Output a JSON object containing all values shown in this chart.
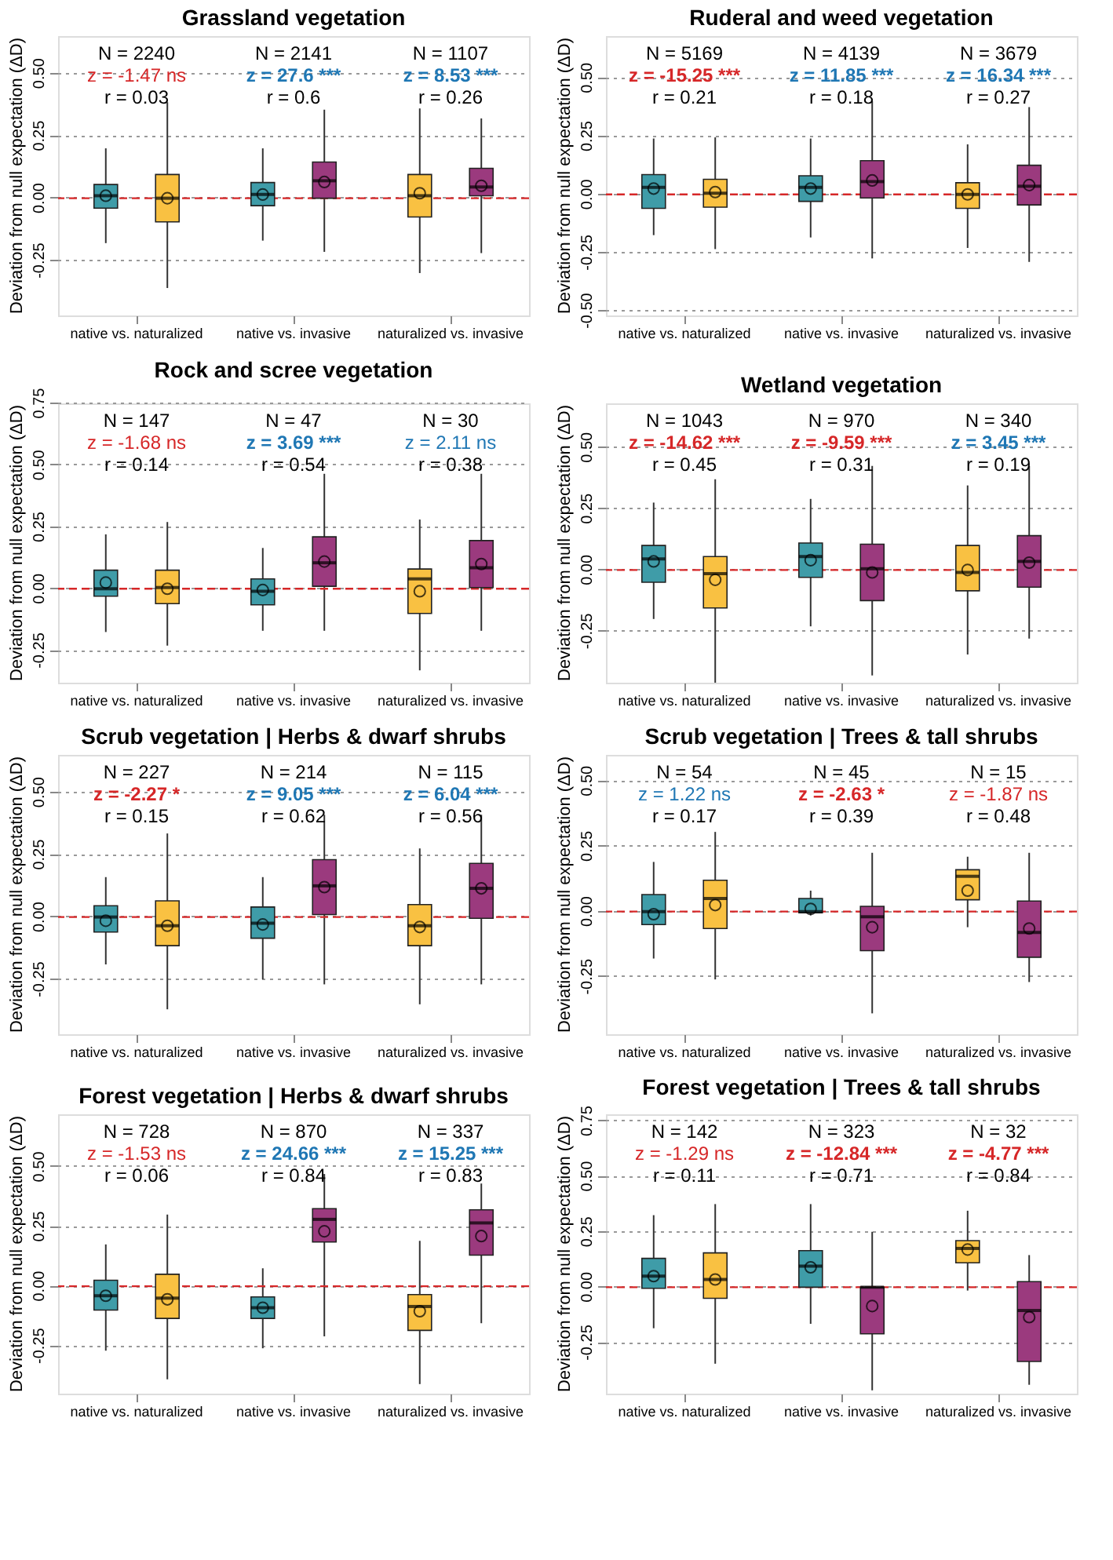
{
  "chart_data": [
    {
      "type": "box",
      "title": "Grassland vegetation",
      "ylabel": "Deviation from null expectation (ΔD)",
      "categories": [
        "native vs. naturalized",
        "native vs. invasive",
        "naturalized vs. invasive"
      ],
      "ylim": [
        -0.47,
        0.65
      ],
      "yticks": [
        -0.25,
        {
          "value": 0,
          "label": "0.00"
        },
        0.25,
        {
          "value": 0.5,
          "label": "0.50"
        }
      ],
      "grid": "y",
      "ref_lines": [
        {
          "axis": "y",
          "value": 0,
          "color": "#d62728",
          "line_style": "dashed"
        }
      ],
      "annotations": [
        "N = 2240",
        "z = -1.47 ns",
        "r = 0.03",
        "N = 2141",
        "z = 27.6 ***",
        "r = 0.6",
        "N = 1107",
        "z = 8.53 ***",
        "r = 0.26"
      ],
      "series": [
        {
          "colors": [
            "#3f9ca8",
            "#3f9ca8",
            "#f9c142"
          ],
          "boxes": [
            {
              "low": -0.18,
              "q1": -0.04,
              "median": 0.01,
              "q3": 0.055,
              "high": 0.2,
              "mean": 0.01
            },
            {
              "low": -0.17,
              "q1": -0.03,
              "median": 0.015,
              "q3": 0.063,
              "high": 0.2,
              "mean": 0.015
            },
            {
              "low": -0.3,
              "q1": -0.075,
              "median": 0.01,
              "q3": 0.095,
              "high": 0.36,
              "mean": 0.02
            }
          ]
        },
        {
          "colors": [
            "#f9c142",
            "#9b3a7e",
            "#9b3a7e"
          ],
          "boxes": [
            {
              "low": -0.36,
              "q1": -0.095,
              "median": 0.0,
              "q3": 0.095,
              "high": 0.385,
              "mean": 0.0
            },
            {
              "low": -0.215,
              "q1": 0.0,
              "median": 0.07,
              "q3": 0.145,
              "high": 0.355,
              "mean": 0.065
            },
            {
              "low": -0.22,
              "q1": 0.01,
              "median": 0.045,
              "q3": 0.12,
              "high": 0.32,
              "mean": 0.05
            }
          ]
        }
      ]
    },
    {
      "type": "box",
      "title": "Ruderal and weed vegetation",
      "ylabel": "Deviation from null expectation (ΔD)",
      "categories": [
        "native vs. naturalized",
        "native vs. invasive",
        "naturalized vs. invasive"
      ],
      "ylim": [
        -0.52,
        0.68
      ],
      "yticks": [
        {
          "value": -0.5,
          "label": "-0.50"
        },
        -0.25,
        {
          "value": 0,
          "label": "0.00"
        },
        0.25,
        {
          "value": 0.5,
          "label": "0.50"
        }
      ],
      "grid": "y",
      "ref_lines": [
        {
          "axis": "y",
          "value": 0,
          "color": "#d62728",
          "line_style": "dashed"
        }
      ],
      "annotations": [
        "N = 5169",
        "z = -15.25 ***",
        "r = 0.21",
        "N = 4139",
        "z = 11.85 ***",
        "r = 0.18",
        "N = 3679",
        "z = 16.34 ***",
        "r = 0.27"
      ],
      "series": [
        {
          "colors": [
            "#3f9ca8",
            "#3f9ca8",
            "#f9c142"
          ],
          "boxes": [
            {
              "low": -0.175,
              "q1": -0.06,
              "median": 0.03,
              "q3": 0.085,
              "high": 0.24,
              "mean": 0.025
            },
            {
              "low": -0.185,
              "q1": -0.03,
              "median": 0.03,
              "q3": 0.08,
              "high": 0.24,
              "mean": 0.025
            },
            {
              "low": -0.23,
              "q1": -0.06,
              "median": 0.0,
              "q3": 0.05,
              "high": 0.215,
              "mean": 0.0
            }
          ]
        },
        {
          "colors": [
            "#f9c142",
            "#9b3a7e",
            "#9b3a7e"
          ],
          "boxes": [
            {
              "low": -0.235,
              "q1": -0.055,
              "median": 0.005,
              "q3": 0.065,
              "high": 0.245,
              "mean": 0.01
            },
            {
              "low": -0.275,
              "q1": -0.015,
              "median": 0.055,
              "q3": 0.145,
              "high": 0.4,
              "mean": 0.06
            },
            {
              "low": -0.29,
              "q1": -0.045,
              "median": 0.035,
              "q3": 0.125,
              "high": 0.375,
              "mean": 0.04
            }
          ]
        }
      ]
    },
    {
      "type": "box",
      "title": "Rock and scree vegetation",
      "ylabel": "Deviation from null expectation (ΔD)",
      "categories": [
        "native vs. naturalized",
        "native vs. invasive",
        "naturalized vs. invasive"
      ],
      "ylim": [
        -0.38,
        0.75
      ],
      "yticks": [
        -0.25,
        {
          "value": 0,
          "label": "0.00"
        },
        0.25,
        {
          "value": 0.5,
          "label": "0.50"
        },
        0.75
      ],
      "grid": "y",
      "ref_lines": [
        {
          "axis": "y",
          "value": 0,
          "color": "#d62728",
          "line_style": "dashed"
        }
      ],
      "annotations": [
        "N = 147",
        "z = -1.68 ns",
        "r = 0.14",
        "N = 47",
        "z = 3.69 ***",
        "r = 0.54",
        "N = 30",
        "z = 2.11 ns",
        "r = 0.38"
      ],
      "series": [
        {
          "colors": [
            "#3f9ca8",
            "#3f9ca8",
            "#f9c142"
          ],
          "boxes": [
            {
              "low": -0.175,
              "q1": -0.03,
              "median": 0.0,
              "q3": 0.075,
              "high": 0.22,
              "mean": 0.025
            },
            {
              "low": -0.17,
              "q1": -0.065,
              "median": -0.01,
              "q3": 0.04,
              "high": 0.165,
              "mean": -0.005
            },
            {
              "low": -0.33,
              "q1": -0.1,
              "median": 0.04,
              "q3": 0.08,
              "high": 0.28,
              "mean": -0.01
            }
          ]
        },
        {
          "colors": [
            "#f9c142",
            "#9b3a7e",
            "#9b3a7e"
          ],
          "boxes": [
            {
              "low": -0.23,
              "q1": -0.06,
              "median": 0.005,
              "q3": 0.075,
              "high": 0.27,
              "mean": 0.0
            },
            {
              "low": -0.17,
              "q1": 0.01,
              "median": 0.105,
              "q3": 0.21,
              "high": 0.465,
              "mean": 0.11
            },
            {
              "low": -0.17,
              "q1": 0.005,
              "median": 0.085,
              "q3": 0.195,
              "high": 0.465,
              "mean": 0.1
            }
          ]
        }
      ]
    },
    {
      "type": "box",
      "title": "Wetland vegetation",
      "ylabel": "Deviation from null expectation (ΔD)",
      "categories": [
        "native vs. naturalized",
        "native vs. invasive",
        "naturalized vs. invasive"
      ],
      "ylim": [
        -0.46,
        0.68
      ],
      "yticks": [
        -0.25,
        {
          "value": 0,
          "label": "0.00"
        },
        0.25,
        {
          "value": 0.5,
          "label": "0.50"
        }
      ],
      "grid": "y",
      "ref_lines": [
        {
          "axis": "y",
          "value": 0,
          "color": "#d62728",
          "line_style": "dashed"
        }
      ],
      "annotations": [
        "N = 1043",
        "z = -14.62 ***",
        "r = 0.45",
        "N = 970",
        "z = -9.59 ***",
        "r = 0.31",
        "N = 340",
        "z = 3.45 ***",
        "r = 0.19"
      ],
      "series": [
        {
          "colors": [
            "#3f9ca8",
            "#3f9ca8",
            "#f9c142"
          ],
          "boxes": [
            {
              "low": -0.2,
              "q1": -0.05,
              "median": 0.045,
              "q3": 0.1,
              "high": 0.275,
              "mean": 0.035
            },
            {
              "low": -0.23,
              "q1": -0.03,
              "median": 0.055,
              "q3": 0.11,
              "high": 0.29,
              "mean": 0.04
            },
            {
              "low": -0.345,
              "q1": -0.085,
              "median": -0.01,
              "q3": 0.1,
              "high": 0.345,
              "mean": 0.0
            }
          ]
        },
        {
          "colors": [
            "#f9c142",
            "#9b3a7e",
            "#9b3a7e"
          ],
          "boxes": [
            {
              "low": -0.46,
              "q1": -0.155,
              "median": -0.015,
              "q3": 0.055,
              "high": 0.37,
              "mean": -0.04
            },
            {
              "low": -0.43,
              "q1": -0.125,
              "median": 0.005,
              "q3": 0.105,
              "high": 0.425,
              "mean": -0.01
            },
            {
              "low": -0.28,
              "q1": -0.07,
              "median": 0.035,
              "q3": 0.14,
              "high": 0.425,
              "mean": 0.03
            }
          ]
        }
      ]
    },
    {
      "type": "box",
      "title": "Scrub vegetation | Herbs & dwarf shrubs",
      "ylabel": "Deviation from null expectation (ΔD)",
      "categories": [
        "native vs. naturalized",
        "native vs. invasive",
        "naturalized vs. invasive"
      ],
      "ylim": [
        -0.47,
        0.65
      ],
      "yticks": [
        -0.25,
        {
          "value": 0,
          "label": "0.00"
        },
        0.25,
        {
          "value": 0.5,
          "label": "0.50"
        }
      ],
      "grid": "y",
      "ref_lines": [
        {
          "axis": "y",
          "value": 0,
          "color": "#d62728",
          "line_style": "dashed"
        }
      ],
      "annotations": [
        "N = 227",
        "z = -2.27 *",
        "r = 0.15",
        "N = 214",
        "z = 9.05 ***",
        "r = 0.62",
        "N = 115",
        "z = 6.04 ***",
        "r = 0.56"
      ],
      "series": [
        {
          "colors": [
            "#3f9ca8",
            "#3f9ca8",
            "#f9c142"
          ],
          "boxes": [
            {
              "low": -0.19,
              "q1": -0.06,
              "median": 0.0,
              "q3": 0.045,
              "high": 0.16,
              "mean": -0.015
            },
            {
              "low": -0.25,
              "q1": -0.085,
              "median": -0.025,
              "q3": 0.04,
              "high": 0.16,
              "mean": -0.03
            },
            {
              "low": -0.35,
              "q1": -0.115,
              "median": -0.035,
              "q3": 0.05,
              "high": 0.275,
              "mean": -0.04
            }
          ]
        },
        {
          "colors": [
            "#f9c142",
            "#9b3a7e",
            "#9b3a7e"
          ],
          "boxes": [
            {
              "low": -0.37,
              "q1": -0.115,
              "median": -0.035,
              "q3": 0.065,
              "high": 0.335,
              "mean": -0.035
            },
            {
              "low": -0.27,
              "q1": 0.01,
              "median": 0.125,
              "q3": 0.23,
              "high": 0.41,
              "mean": 0.12
            },
            {
              "low": -0.27,
              "q1": -0.005,
              "median": 0.115,
              "q3": 0.215,
              "high": 0.41,
              "mean": 0.115
            }
          ]
        }
      ]
    },
    {
      "type": "box",
      "title": "Scrub vegetation | Trees & tall shrubs",
      "ylabel": "Deviation from null expectation (ΔD)",
      "categories": [
        "native vs. naturalized",
        "native vs. invasive",
        "naturalized vs. invasive"
      ],
      "ylim": [
        -0.47,
        0.6
      ],
      "yticks": [
        -0.25,
        {
          "value": 0,
          "label": "0.00"
        },
        0.25,
        {
          "value": 0.5,
          "label": "0.50"
        }
      ],
      "grid": "y",
      "ref_lines": [
        {
          "axis": "y",
          "value": 0,
          "color": "#d62728",
          "line_style": "dashed"
        }
      ],
      "annotations": [
        "N = 54",
        "z = 1.22 ns",
        "r = 0.17",
        "N = 45",
        "z = -2.63 *",
        "r = 0.39",
        "N = 15",
        "z = -1.87 ns",
        "r = 0.48"
      ],
      "series": [
        {
          "colors": [
            "#3f9ca8",
            "#3f9ca8",
            "#f9c142"
          ],
          "boxes": [
            {
              "low": -0.18,
              "q1": -0.05,
              "median": 0.0,
              "q3": 0.065,
              "high": 0.19,
              "mean": -0.01
            },
            {
              "low": -0.015,
              "q1": -0.005,
              "median": 0.0,
              "q3": 0.05,
              "high": 0.08,
              "mean": 0.01
            },
            {
              "low": -0.06,
              "q1": 0.045,
              "median": 0.135,
              "q3": 0.16,
              "high": 0.21,
              "mean": 0.08
            }
          ]
        },
        {
          "colors": [
            "#f9c142",
            "#9b3a7e",
            "#9b3a7e"
          ],
          "boxes": [
            {
              "low": -0.26,
              "q1": -0.065,
              "median": 0.05,
              "q3": 0.12,
              "high": 0.305,
              "mean": 0.025
            },
            {
              "low": -0.39,
              "q1": -0.15,
              "median": -0.02,
              "q3": 0.02,
              "high": 0.225,
              "mean": -0.06
            },
            {
              "low": -0.27,
              "q1": -0.175,
              "median": -0.08,
              "q3": 0.04,
              "high": 0.225,
              "mean": -0.065
            }
          ]
        }
      ]
    },
    {
      "type": "box",
      "title": "Forest vegetation | Herbs & dwarf shrubs",
      "ylabel": "Deviation from null expectation (ΔD)",
      "categories": [
        "native vs. naturalized",
        "native vs. invasive",
        "naturalized vs. invasive"
      ],
      "ylim": [
        -0.45,
        0.72
      ],
      "yticks": [
        -0.25,
        {
          "value": 0,
          "label": "0.00"
        },
        0.25,
        {
          "value": 0.5,
          "label": "0.50"
        }
      ],
      "grid": "y",
      "ref_lines": [
        {
          "axis": "y",
          "value": 0,
          "color": "#d62728",
          "line_style": "dashed"
        }
      ],
      "annotations": [
        "N = 728",
        "z = -1.53 ns",
        "r = 0.06",
        "N = 870",
        "z = 24.66 ***",
        "r = 0.84",
        "N = 337",
        "z = 15.25 ***",
        "r = 0.83"
      ],
      "series": [
        {
          "colors": [
            "#3f9ca8",
            "#3f9ca8",
            "#f9c142"
          ],
          "boxes": [
            {
              "low": -0.27,
              "q1": -0.1,
              "median": -0.04,
              "q3": 0.025,
              "high": 0.175,
              "mean": -0.04
            },
            {
              "low": -0.26,
              "q1": -0.135,
              "median": -0.09,
              "q3": -0.045,
              "high": 0.075,
              "mean": -0.09
            },
            {
              "low": -0.41,
              "q1": -0.185,
              "median": -0.085,
              "q3": -0.035,
              "high": 0.19,
              "mean": -0.105
            }
          ]
        },
        {
          "colors": [
            "#f9c142",
            "#9b3a7e",
            "#9b3a7e"
          ],
          "boxes": [
            {
              "low": -0.39,
              "q1": -0.135,
              "median": -0.05,
              "q3": 0.05,
              "high": 0.3,
              "mean": -0.055
            },
            {
              "low": -0.21,
              "q1": 0.185,
              "median": 0.28,
              "q3": 0.325,
              "high": 0.47,
              "mean": 0.23
            },
            {
              "low": -0.155,
              "q1": 0.13,
              "median": 0.265,
              "q3": 0.32,
              "high": 0.43,
              "mean": 0.21
            }
          ]
        }
      ]
    },
    {
      "type": "box",
      "title": "Forest vegetation | Trees & tall shrubs",
      "ylabel": "Deviation from null expectation (ΔD)",
      "categories": [
        "native vs. naturalized",
        "native vs. invasive",
        "naturalized vs. invasive"
      ],
      "ylim": [
        -0.48,
        0.78
      ],
      "yticks": [
        -0.25,
        {
          "value": 0,
          "label": "0.00"
        },
        0.25,
        {
          "value": 0.5,
          "label": "0.50"
        },
        0.75
      ],
      "grid": "y",
      "ref_lines": [
        {
          "axis": "y",
          "value": 0,
          "color": "#d62728",
          "line_style": "dashed"
        }
      ],
      "annotations": [
        "N = 142",
        "z = -1.29 ns",
        "r = 0.11",
        "N = 323",
        "z = -12.84 ***",
        "r = 0.71",
        "N = 32",
        "z = -4.77 ***",
        "r = 0.84"
      ],
      "series": [
        {
          "colors": [
            "#3f9ca8",
            "#3f9ca8",
            "#f9c142"
          ],
          "boxes": [
            {
              "low": -0.185,
              "q1": -0.005,
              "median": 0.05,
              "q3": 0.13,
              "high": 0.325,
              "mean": 0.05
            },
            {
              "low": -0.165,
              "q1": 0.0,
              "median": 0.095,
              "q3": 0.165,
              "high": 0.375,
              "mean": 0.09
            },
            {
              "low": -0.015,
              "q1": 0.11,
              "median": 0.175,
              "q3": 0.21,
              "high": 0.345,
              "mean": 0.17
            }
          ]
        },
        {
          "colors": [
            "#f9c142",
            "#9b3a7e",
            "#9b3a7e"
          ],
          "boxes": [
            {
              "low": -0.345,
              "q1": -0.05,
              "median": 0.035,
              "q3": 0.155,
              "high": 0.375,
              "mean": 0.035
            },
            {
              "low": -0.465,
              "q1": -0.21,
              "median": 0.0,
              "q3": 0.0,
              "high": 0.25,
              "mean": -0.085
            },
            {
              "low": -0.44,
              "q1": -0.335,
              "median": -0.105,
              "q3": 0.025,
              "high": 0.145,
              "mean": -0.135
            }
          ]
        }
      ]
    }
  ]
}
